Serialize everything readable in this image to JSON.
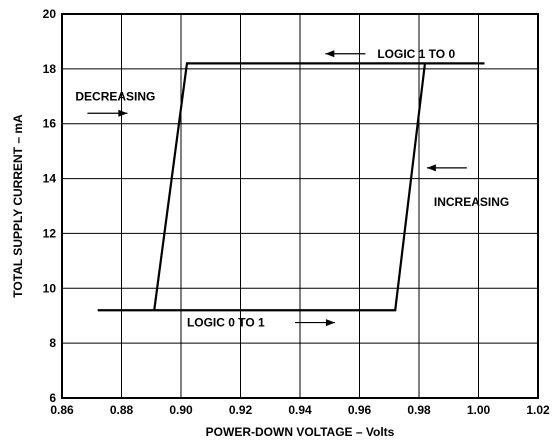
{
  "chart_data": {
    "type": "line",
    "xlabel": "POWER-DOWN VOLTAGE – Volts",
    "ylabel": "TOTAL SUPPLY CURRENT – mA",
    "xlim": [
      0.86,
      1.02
    ],
    "ylim": [
      6,
      20
    ],
    "x_ticks": [
      0.86,
      0.88,
      0.9,
      0.92,
      0.94,
      0.96,
      0.98,
      1.0,
      1.02
    ],
    "y_ticks": [
      6,
      8,
      10,
      12,
      14,
      16,
      18,
      20
    ],
    "x_tick_labels": [
      "0.86",
      "0.88",
      "0.90",
      "0.92",
      "0.94",
      "0.96",
      "0.98",
      "1.00",
      "1.02"
    ],
    "y_tick_labels": [
      "6",
      "8",
      "10",
      "12",
      "14",
      "16",
      "18",
      "20"
    ],
    "grid": true,
    "series": [
      {
        "x": [
          0.872,
          0.891,
          0.902,
          1.002,
          0.982,
          0.972,
          0.872
        ],
        "y": [
          9.2,
          9.2,
          18.2,
          18.2,
          18.2,
          9.2,
          9.2
        ]
      }
    ],
    "annotations": [
      {
        "text": "LOGIC 1 TO 0",
        "x": 0.966,
        "y": 18.55,
        "arrow": "left"
      },
      {
        "text": "DECREASING",
        "x": 0.8645,
        "y": 17.0,
        "arrow": "right"
      },
      {
        "text": "INCREASING",
        "x": 0.985,
        "y": 13.15,
        "arrow": "left"
      },
      {
        "text": "LOGIC 0 TO 1",
        "x": 0.902,
        "y": 8.75,
        "arrow": "right"
      }
    ]
  }
}
